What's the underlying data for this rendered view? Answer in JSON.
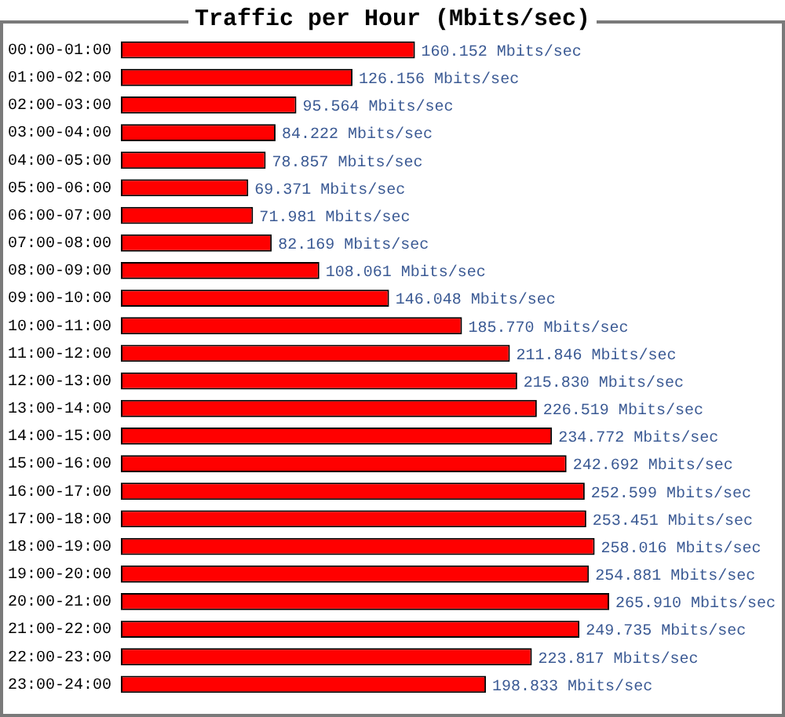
{
  "chart_data": {
    "type": "bar",
    "orientation": "horizontal",
    "title": "Traffic per Hour (Mbits/sec)",
    "categories": [
      "00:00-01:00",
      "01:00-02:00",
      "02:00-03:00",
      "03:00-04:00",
      "04:00-05:00",
      "05:00-06:00",
      "06:00-07:00",
      "07:00-08:00",
      "08:00-09:00",
      "09:00-10:00",
      "10:00-11:00",
      "11:00-12:00",
      "12:00-13:00",
      "13:00-14:00",
      "14:00-15:00",
      "15:00-16:00",
      "16:00-17:00",
      "17:00-18:00",
      "18:00-19:00",
      "19:00-20:00",
      "20:00-21:00",
      "21:00-22:00",
      "22:00-23:00",
      "23:00-24:00"
    ],
    "values": [
      160.152,
      126.156,
      95.564,
      84.222,
      78.857,
      69.371,
      71.981,
      82.169,
      108.061,
      146.048,
      185.77,
      211.846,
      215.83,
      226.519,
      234.772,
      242.692,
      252.599,
      253.451,
      258.016,
      254.881,
      265.91,
      249.735,
      223.817,
      198.833
    ],
    "value_labels": [
      "160.152 Mbits/sec",
      "126.156 Mbits/sec",
      "95.564 Mbits/sec",
      "84.222 Mbits/sec",
      "78.857 Mbits/sec",
      "69.371 Mbits/sec",
      "71.981 Mbits/sec",
      "82.169 Mbits/sec",
      "108.061 Mbits/sec",
      "146.048 Mbits/sec",
      "185.770 Mbits/sec",
      "211.846 Mbits/sec",
      "215.830 Mbits/sec",
      "226.519 Mbits/sec",
      "234.772 Mbits/sec",
      "242.692 Mbits/sec",
      "252.599 Mbits/sec",
      "253.451 Mbits/sec",
      "258.016 Mbits/sec",
      "254.881 Mbits/sec",
      "265.910 Mbits/sec",
      "249.735 Mbits/sec",
      "223.817 Mbits/sec",
      "198.833 Mbits/sec"
    ],
    "color": "#ff0000",
    "tick_labels": "y"
  }
}
